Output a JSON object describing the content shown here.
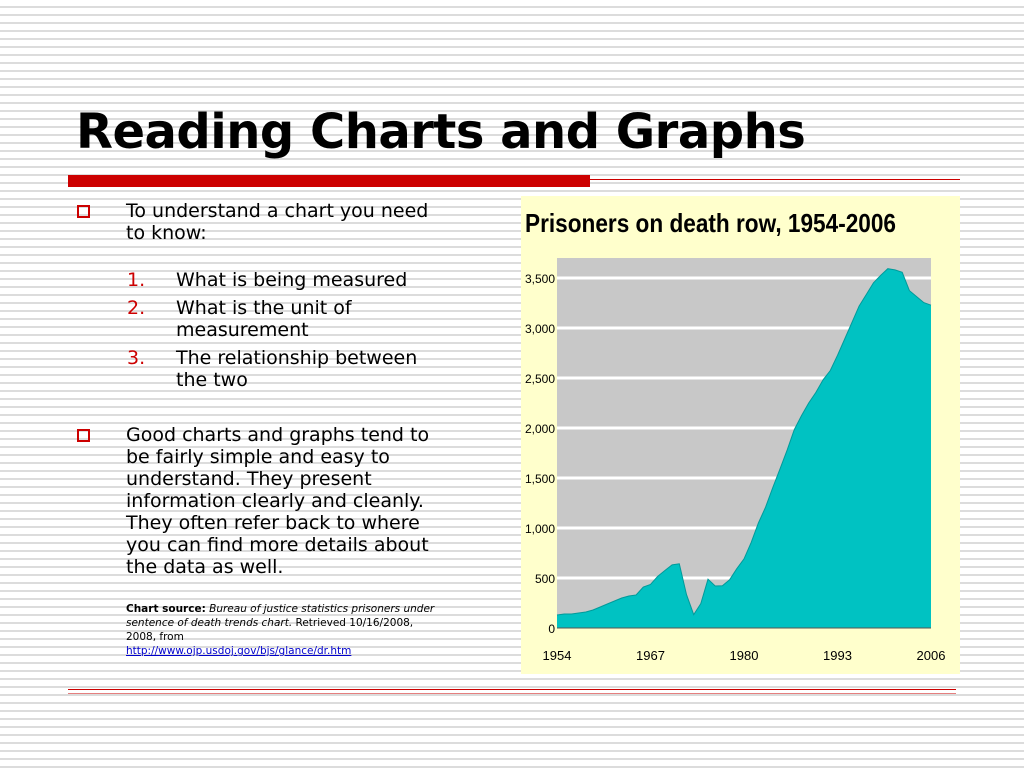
{
  "slide": {
    "title": "Reading Charts and Graphs",
    "bullet1": {
      "line1": "To understand a chart you need",
      "line2": "to know:",
      "items": [
        {
          "num": "1.",
          "lines": [
            "What is being measured"
          ]
        },
        {
          "num": "2.",
          "lines": [
            "What is the unit of",
            "measurement"
          ]
        },
        {
          "num": "3.",
          "lines": [
            "The relationship between",
            "the two"
          ]
        }
      ]
    },
    "bullet2": {
      "lines": [
        "Good charts and graphs tend to",
        "be fairly simple and easy to",
        "understand. They present",
        "information clearly and cleanly.",
        "They often refer back to where",
        "you can find more details about",
        "the data as well."
      ]
    },
    "source": {
      "label": "Chart source:",
      "italic": "Bureau of justice statistics prisoners under sentence of death trends chart.",
      "retrieved": "Retrieved 10/16/2008, 2008, from",
      "link": "http://www.ojp.usdoj.gov/bjs/glance/dr.htm"
    }
  },
  "colors": {
    "accent_red": "#cc0000",
    "chart_background": "#ffffcc",
    "plot_background": "#c8c8c8",
    "area_fill": "#00c2c2"
  },
  "chart_data": {
    "type": "area",
    "title": "Prisoners on death row, 1954-2006",
    "xlabel": "",
    "ylabel": "",
    "xlim": [
      1954,
      2006
    ],
    "ylim": [
      0,
      3700
    ],
    "x_ticks": [
      "1954",
      "1967",
      "1980",
      "1993",
      "2006"
    ],
    "y_ticks": [
      "0",
      "500",
      "1,000",
      "1,500",
      "2,000",
      "2,500",
      "3,000",
      "3,500"
    ],
    "y_tick_values": [
      0,
      500,
      1000,
      1500,
      2000,
      2500,
      3000,
      3500
    ],
    "grid": true,
    "series": [
      {
        "name": "",
        "x": [
          1954,
          1955,
          1956,
          1957,
          1958,
          1959,
          1960,
          1961,
          1962,
          1963,
          1964,
          1965,
          1966,
          1967,
          1968,
          1969,
          1970,
          1971,
          1972,
          1973,
          1974,
          1975,
          1976,
          1977,
          1978,
          1979,
          1980,
          1981,
          1982,
          1983,
          1984,
          1985,
          1986,
          1987,
          1988,
          1989,
          1990,
          1991,
          1992,
          1993,
          1994,
          1995,
          1996,
          1997,
          1998,
          1999,
          2000,
          2001,
          2002,
          2003,
          2004,
          2005,
          2006
        ],
        "values": [
          130,
          140,
          140,
          150,
          160,
          180,
          210,
          240,
          270,
          300,
          320,
          330,
          410,
          435,
          517,
          575,
          631,
          642,
          334,
          134,
          244,
          488,
          420,
          423,
          482,
          593,
          691,
          856,
          1050,
          1209,
          1405,
          1591,
          1781,
          1984,
          2124,
          2250,
          2356,
          2482,
          2575,
          2727,
          2890,
          3054,
          3219,
          3335,
          3452,
          3527,
          3593,
          3581,
          3557,
          3374,
          3314,
          3254,
          3228
        ]
      }
    ]
  }
}
